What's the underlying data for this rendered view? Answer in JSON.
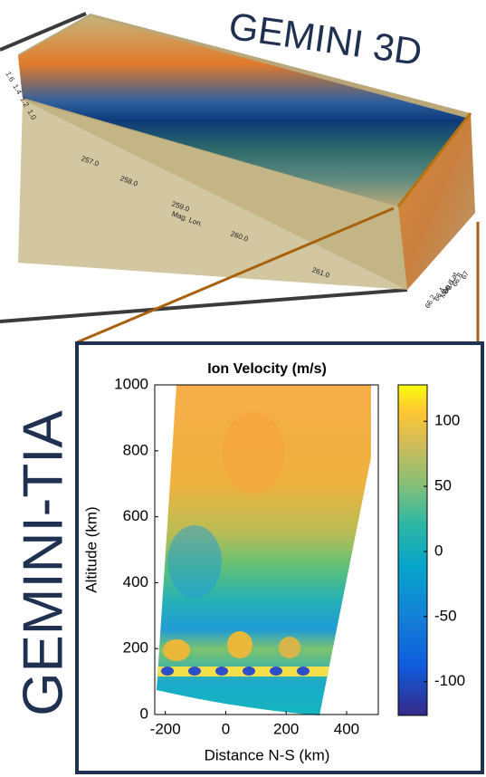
{
  "title3d": "GEMINI 3D",
  "title_tia": "GEMINI-TIA",
  "render_3d": {
    "lon_ticks": [
      "257.0",
      "258.0",
      "259.0",
      "260.0",
      "261.0"
    ],
    "lon_label": "Mag. Lon.",
    "lat_ticks": [
      "66.2",
      "66.4",
      "66.6",
      "66.8",
      "67"
    ],
    "lat_label": "Mag. Lat.",
    "alt_ticks": [
      "1.6",
      "1.4",
      "1.2",
      "1.0"
    ]
  },
  "chart_data": {
    "type": "heatmap",
    "title": "Ion Velocity (m/s)",
    "x_label": "Distance N-S (km)",
    "y_label": "Altitude (km)",
    "xlim": [
      -235,
      505
    ],
    "ylim": [
      0,
      1000
    ],
    "xticks": [
      -200,
      0,
      200,
      400
    ],
    "yticks": [
      0,
      200,
      400,
      600,
      800,
      1000
    ],
    "colorbar": {
      "clim": [
        -126,
        128
      ],
      "ticks": [
        100,
        50,
        0,
        -50,
        -100
      ]
    }
  }
}
